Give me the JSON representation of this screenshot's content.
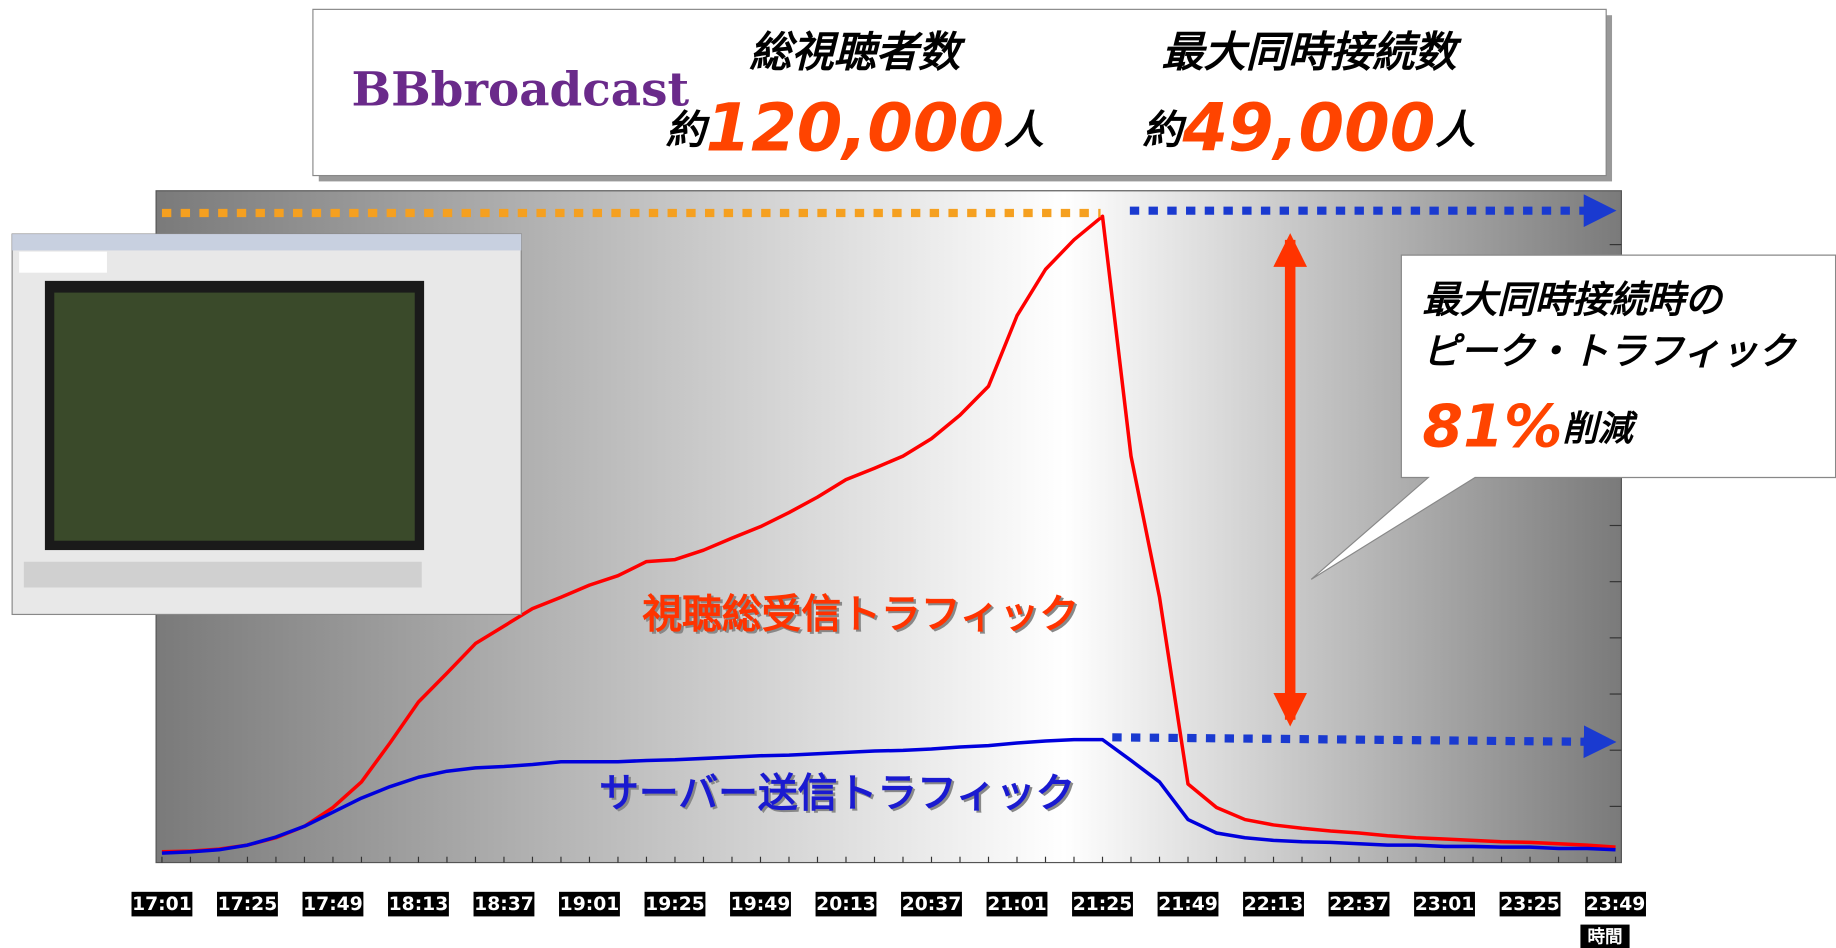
{
  "banner": {
    "logo": "BBbroadcast",
    "total_label": "総視聴者数",
    "total_prefix": "約",
    "total_value": "120,000",
    "total_unit": "人",
    "peak_label": "最大同時接続数",
    "peak_prefix": "約",
    "peak_value": "49,000",
    "peak_unit": "人"
  },
  "callout": {
    "line1": "最大同時接続時の",
    "line2": "ピーク・トラフィック",
    "percent": "81%",
    "suffix": "削減"
  },
  "chart_data": {
    "type": "line",
    "x_label": "時間",
    "categories": [
      "17:01",
      null,
      null,
      "17:25",
      null,
      null,
      "17:49",
      null,
      null,
      "18:13",
      null,
      null,
      "18:37",
      null,
      null,
      "19:01",
      null,
      null,
      "19:25",
      null,
      null,
      "19:49",
      null,
      null,
      "20:13",
      null,
      null,
      "20:37",
      null,
      null,
      "21:01",
      null,
      null,
      "21:25",
      null,
      null,
      "21:49",
      null,
      null,
      "22:13",
      null,
      null,
      "22:37",
      null,
      null,
      "23:01",
      null,
      null,
      "23:25",
      null,
      null,
      "23:49"
    ],
    "ylim": [
      0,
      100
    ],
    "series": [
      {
        "name": "視聴総受信トラフィック",
        "color": "#ff0000",
        "values": [
          1.6,
          1.7,
          2,
          2.6,
          3.7,
          5.4,
          8.2,
          12,
          17.8,
          23.9,
          28.2,
          32.6,
          35.2,
          37.8,
          39.5,
          41.3,
          42.7,
          44.8,
          45.1,
          46.5,
          48.3,
          50,
          52.1,
          54.4,
          57,
          58.7,
          60.5,
          63.1,
          66.6,
          70.9,
          81.4,
          88.3,
          92.7,
          96.2,
          60.5,
          39.5,
          11.7,
          8.2,
          6.4,
          5.6,
          5.1,
          4.7,
          4.4,
          4,
          3.7,
          3.5,
          3.3,
          3.1,
          3,
          2.8,
          2.6,
          2.3
        ]
      },
      {
        "name": "サーバー送信トラフィック",
        "color": "#0000dd",
        "values": [
          1.4,
          1.6,
          1.9,
          2.6,
          3.8,
          5.4,
          7.5,
          9.6,
          11.3,
          12.7,
          13.6,
          14.1,
          14.3,
          14.6,
          15,
          15,
          15,
          15.2,
          15.3,
          15.5,
          15.7,
          15.9,
          16,
          16.2,
          16.4,
          16.6,
          16.7,
          16.9,
          17.2,
          17.4,
          17.8,
          18.1,
          18.3,
          18.3,
          15.2,
          12,
          6.4,
          4.4,
          3.7,
          3.3,
          3.1,
          3,
          2.8,
          2.6,
          2.6,
          2.4,
          2.4,
          2.3,
          2.3,
          2.1,
          2.1,
          1.9
        ]
      }
    ]
  }
}
